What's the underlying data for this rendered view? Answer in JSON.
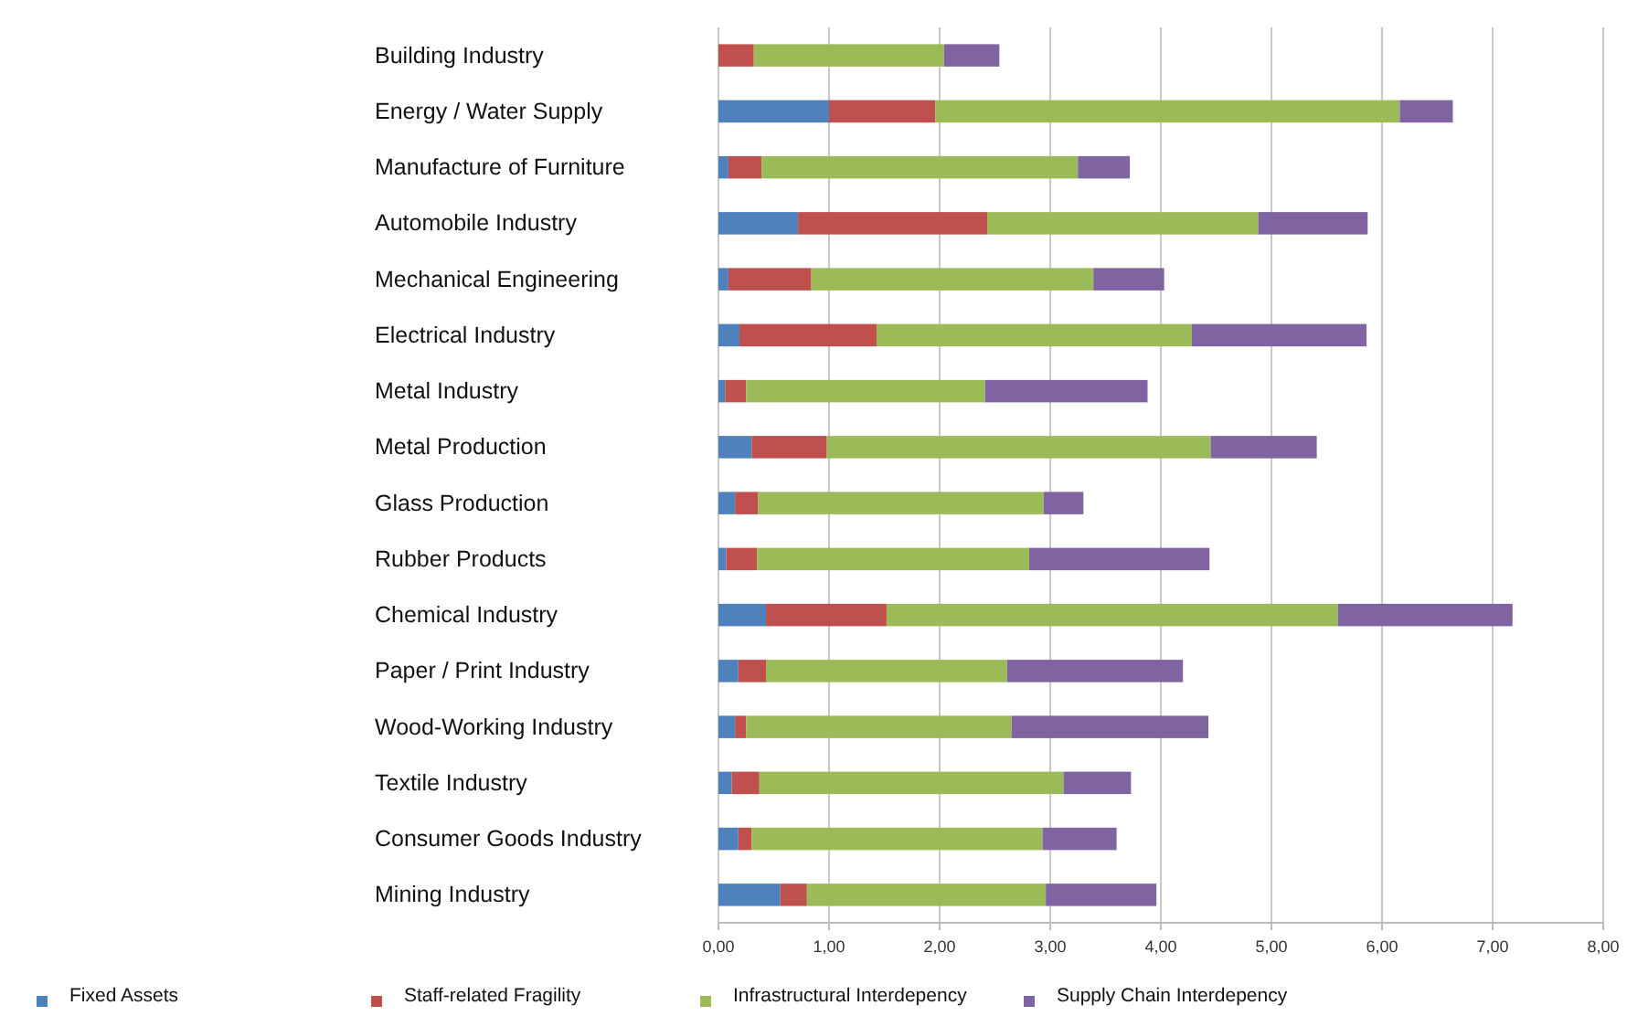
{
  "chart_data": {
    "type": "bar",
    "orientation": "horizontal",
    "stacked": true,
    "categories": [
      "Building Industry",
      "Energy / Water Supply",
      "Manufacture of Furniture",
      "Automobile Industry",
      "Mechanical Engineering",
      "Electrical Industry",
      "Metal Industry",
      "Metal Production",
      "Glass Production",
      "Rubber Products",
      "Chemical Industry",
      "Paper / Print Industry",
      "Wood-Working Industry",
      "Textile Industry",
      "Consumer Goods Industry",
      "Mining Industry"
    ],
    "series": [
      {
        "name": "Fixed Assets",
        "color": "#4f81bd",
        "values": [
          0,
          1.0,
          0.09,
          0.72,
          0.09,
          0.19,
          0.06,
          0.3,
          0.15,
          0.07,
          0.43,
          0.18,
          0.15,
          0.12,
          0.18,
          0.56
        ]
      },
      {
        "name": "Staff-related Fragility",
        "color": "#c0504d",
        "values": [
          0.32,
          0.96,
          0.3,
          1.71,
          0.75,
          1.24,
          0.19,
          0.68,
          0.21,
          0.28,
          1.09,
          0.25,
          0.1,
          0.25,
          0.12,
          0.24
        ]
      },
      {
        "name": "Infrastructural Interdepency",
        "color": "#9bbb59",
        "values": [
          1.72,
          4.2,
          2.86,
          2.45,
          2.55,
          2.85,
          2.16,
          3.47,
          2.58,
          2.46,
          4.08,
          2.18,
          2.4,
          2.75,
          2.63,
          2.16
        ]
      },
      {
        "name": "Supply Chain Interdepency",
        "color": "#8064a2",
        "values": [
          0.5,
          0.48,
          0.47,
          0.99,
          0.64,
          1.58,
          1.47,
          0.96,
          0.36,
          1.63,
          1.58,
          1.59,
          1.78,
          0.61,
          0.67,
          1.0
        ]
      }
    ],
    "xlim": [
      0,
      8
    ],
    "xticks": [
      {
        "value": 0,
        "label": "0,00"
      },
      {
        "value": 1,
        "label": "1,00"
      },
      {
        "value": 2,
        "label": "2,00"
      },
      {
        "value": 3,
        "label": "3,00"
      },
      {
        "value": 4,
        "label": "4,00"
      },
      {
        "value": 5,
        "label": "5,00"
      },
      {
        "value": 6,
        "label": "6,00"
      },
      {
        "value": 7,
        "label": "7,00"
      },
      {
        "value": 8,
        "label": "8,00"
      }
    ],
    "grid": "x",
    "legend": "bottom"
  }
}
